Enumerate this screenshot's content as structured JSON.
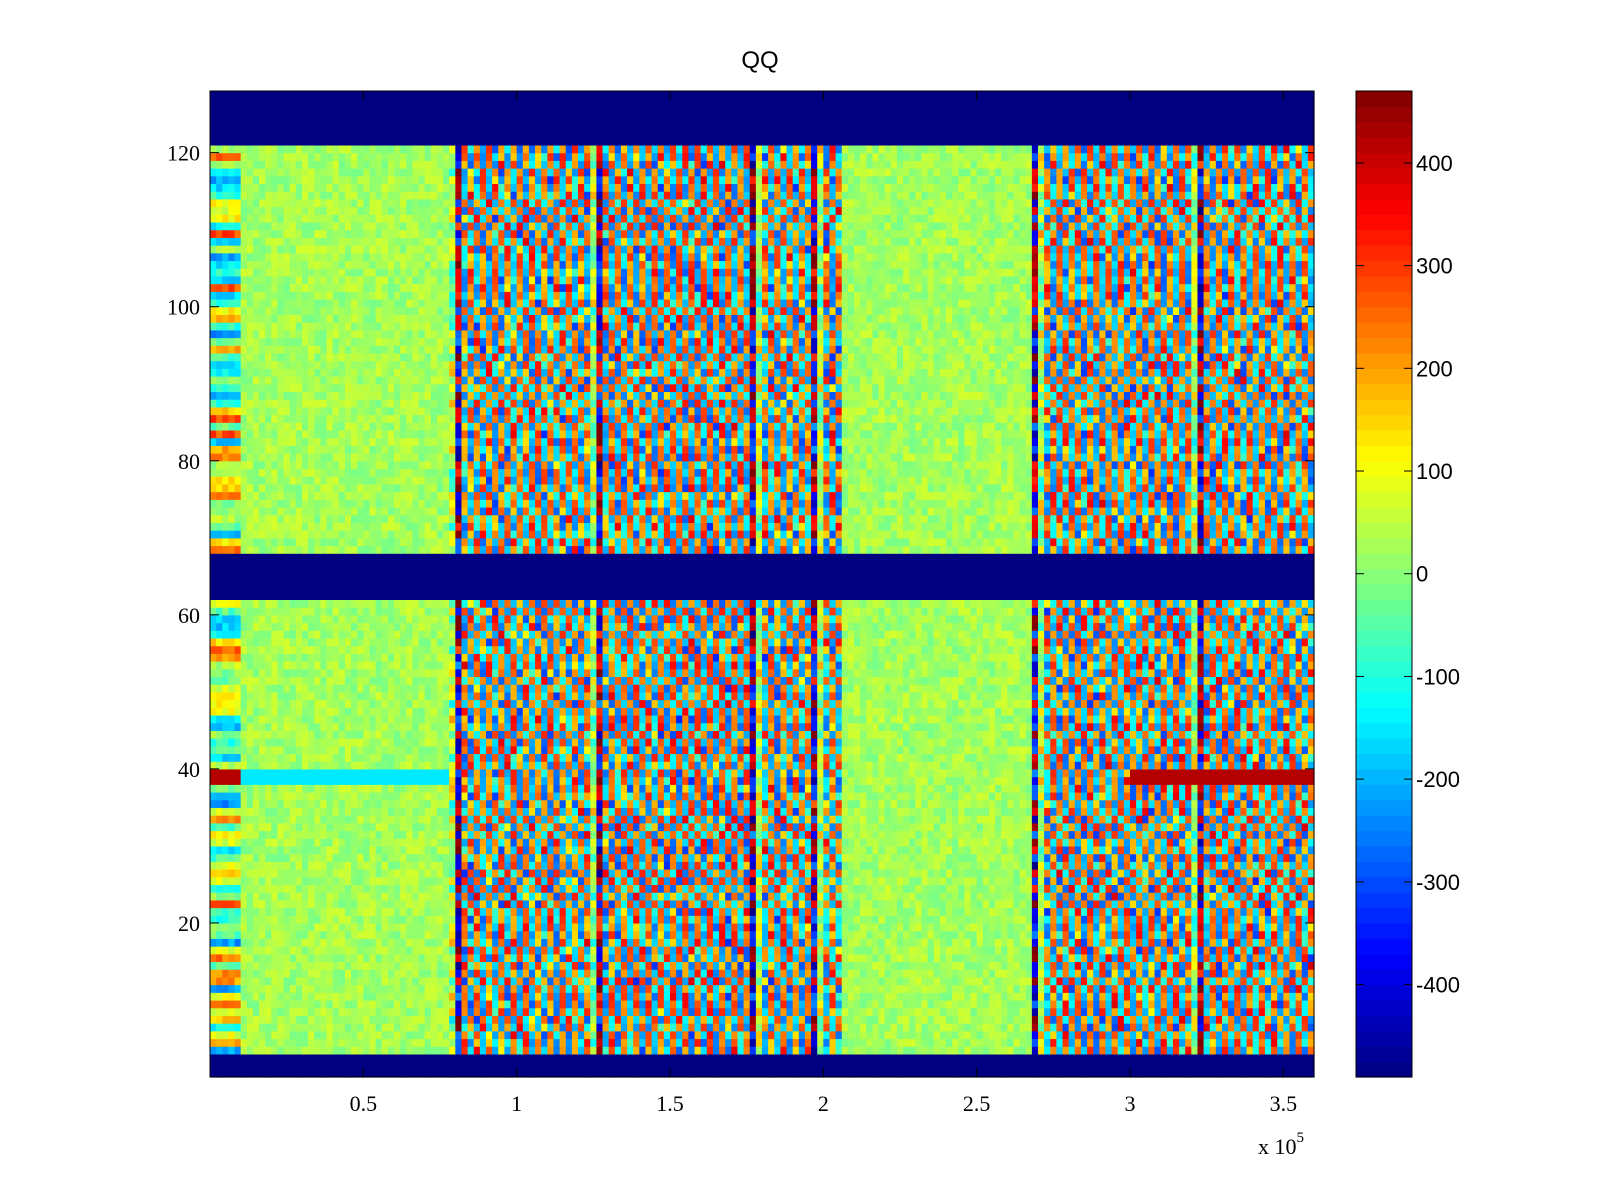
{
  "chart_data": {
    "type": "heatmap",
    "title": "QQ",
    "xlabel": "",
    "ylabel": "",
    "x_multiplier_label": {
      "base": "x 10",
      "exponent": "5"
    },
    "xlim": [
      0,
      360000
    ],
    "ylim": [
      0,
      128
    ],
    "x_ticks": [
      {
        "value": 50000,
        "label": "0.5"
      },
      {
        "value": 100000,
        "label": "1"
      },
      {
        "value": 150000,
        "label": "1.5"
      },
      {
        "value": 200000,
        "label": "2"
      },
      {
        "value": 250000,
        "label": "2.5"
      },
      {
        "value": 300000,
        "label": "3"
      },
      {
        "value": 350000,
        "label": "3.5"
      }
    ],
    "y_ticks": [
      {
        "value": 20,
        "label": "20"
      },
      {
        "value": 40,
        "label": "40"
      },
      {
        "value": 60,
        "label": "60"
      },
      {
        "value": 80,
        "label": "80"
      },
      {
        "value": 100,
        "label": "100"
      },
      {
        "value": 120,
        "label": "120"
      }
    ],
    "colorbar": {
      "colormap": "jet",
      "range": [
        -490,
        470
      ],
      "ticks": [
        {
          "value": 400,
          "label": "400"
        },
        {
          "value": 300,
          "label": "300"
        },
        {
          "value": 200,
          "label": "200"
        },
        {
          "value": 100,
          "label": "100"
        },
        {
          "value": 0,
          "label": "0"
        },
        {
          "value": -100,
          "label": "-100"
        },
        {
          "value": -200,
          "label": "-200"
        },
        {
          "value": -300,
          "label": "-300"
        },
        {
          "value": -400,
          "label": "-400"
        }
      ]
    },
    "masked_rows": [
      [
        0,
        3
      ],
      [
        62,
        68
      ],
      [
        121,
        128
      ]
    ],
    "active_x_segments": [
      [
        78000,
        206000
      ],
      [
        268000,
        360000
      ]
    ],
    "strong_columns": [
      {
        "x": 80000,
        "sign": 1
      },
      {
        "x": 126000,
        "sign": -1
      },
      {
        "x": 178000,
        "sign": 1
      },
      {
        "x": 198000,
        "sign": 1
      },
      {
        "x": 270000,
        "sign": 1
      },
      {
        "x": 322000,
        "sign": -1
      }
    ],
    "highlight_row": {
      "y": 39,
      "value": 420
    }
  }
}
